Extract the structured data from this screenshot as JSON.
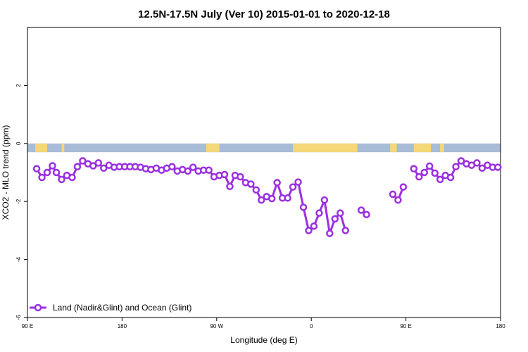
{
  "chart_data": {
    "type": "line",
    "title": "12.5N-17.5N July (Ver 10)   2015-01-01 to 2020-12-18",
    "xlabel": "Longitude (deg E)",
    "ylabel": "XCO2 - MLO trend (ppm)",
    "xlim": [
      0,
      360
    ],
    "ylim": [
      -6,
      4
    ],
    "x_ticks": [
      {
        "at": 0,
        "label": "90 E"
      },
      {
        "at": 72,
        "label": "180"
      },
      {
        "at": 144,
        "label": "90 W"
      },
      {
        "at": 216,
        "label": "0"
      },
      {
        "at": 288,
        "label": "90 E"
      },
      {
        "at": 360,
        "label": "180"
      }
    ],
    "y_ticks": [
      {
        "at": -6,
        "label": "-6"
      },
      {
        "at": -4,
        "label": "-4"
      },
      {
        "at": -2,
        "label": "-2"
      },
      {
        "at": 0,
        "label": "0"
      },
      {
        "at": 2,
        "label": "2"
      }
    ],
    "grid": false,
    "legend_position": "bottom-left",
    "land_band": {
      "y_top": 0.0,
      "y_bottom": -0.3,
      "ocean_color": "#a8bcd8",
      "land_color": "#f5d77a",
      "land_segments": [
        [
          6,
          15
        ],
        [
          26,
          28
        ],
        [
          136,
          146
        ],
        [
          202,
          251
        ],
        [
          276,
          281
        ],
        [
          294,
          307
        ],
        [
          314,
          317
        ]
      ]
    },
    "series": [
      {
        "name": "Land (Nadir&Glint) and Ocean (Glint)",
        "color": "#9b30e0",
        "segments": [
          {
            "x": [
              7,
              11,
              15,
              19,
              22,
              26,
              30,
              34,
              38,
              42,
              46,
              50,
              54,
              58,
              62,
              66,
              70,
              74,
              78,
              82,
              86,
              90,
              94,
              98,
              102,
              106,
              110,
              114,
              118,
              122,
              126,
              130,
              134,
              138,
              142,
              146,
              150,
              154,
              158,
              162,
              166,
              170,
              174,
              178,
              182,
              186,
              190,
              194,
              198,
              202,
              206,
              210,
              214,
              218,
              222,
              226,
              230,
              234,
              238,
              242
            ],
            "y": [
              -0.87,
              -1.17,
              -1.0,
              -0.77,
              -1.0,
              -1.24,
              -1.1,
              -1.17,
              -0.8,
              -0.6,
              -0.7,
              -0.77,
              -0.67,
              -0.85,
              -0.75,
              -0.82,
              -0.8,
              -0.8,
              -0.8,
              -0.8,
              -0.82,
              -0.87,
              -0.9,
              -0.85,
              -0.92,
              -0.85,
              -0.8,
              -0.95,
              -0.9,
              -0.95,
              -0.82,
              -0.95,
              -0.92,
              -0.92,
              -1.15,
              -1.1,
              -1.07,
              -1.48,
              -1.1,
              -1.15,
              -1.35,
              -1.4,
              -1.6,
              -1.95,
              -1.83,
              -1.9,
              -1.35,
              -1.88,
              -1.88,
              -1.5,
              -1.33,
              -2.2,
              -3.0,
              -2.85,
              -2.4,
              -1.95,
              -3.1,
              -2.6,
              -2.4,
              -3.0
            ]
          },
          {
            "x": [
              254,
              258
            ],
            "y": [
              -2.3,
              -2.45
            ]
          },
          {
            "x": [
              278,
              282,
              286
            ],
            "y": [
              -1.75,
              -1.95,
              -1.5
            ]
          },
          {
            "x": [
              294,
              298,
              302,
              306,
              310,
              314,
              318,
              322,
              326,
              330,
              334,
              338,
              342,
              346,
              350,
              354,
              358
            ],
            "y": [
              -0.87,
              -1.15,
              -1.0,
              -0.78,
              -1.02,
              -1.24,
              -1.1,
              -1.17,
              -0.8,
              -0.6,
              -0.7,
              -0.75,
              -0.67,
              -0.85,
              -0.75,
              -0.82,
              -0.82
            ]
          }
        ]
      }
    ]
  }
}
